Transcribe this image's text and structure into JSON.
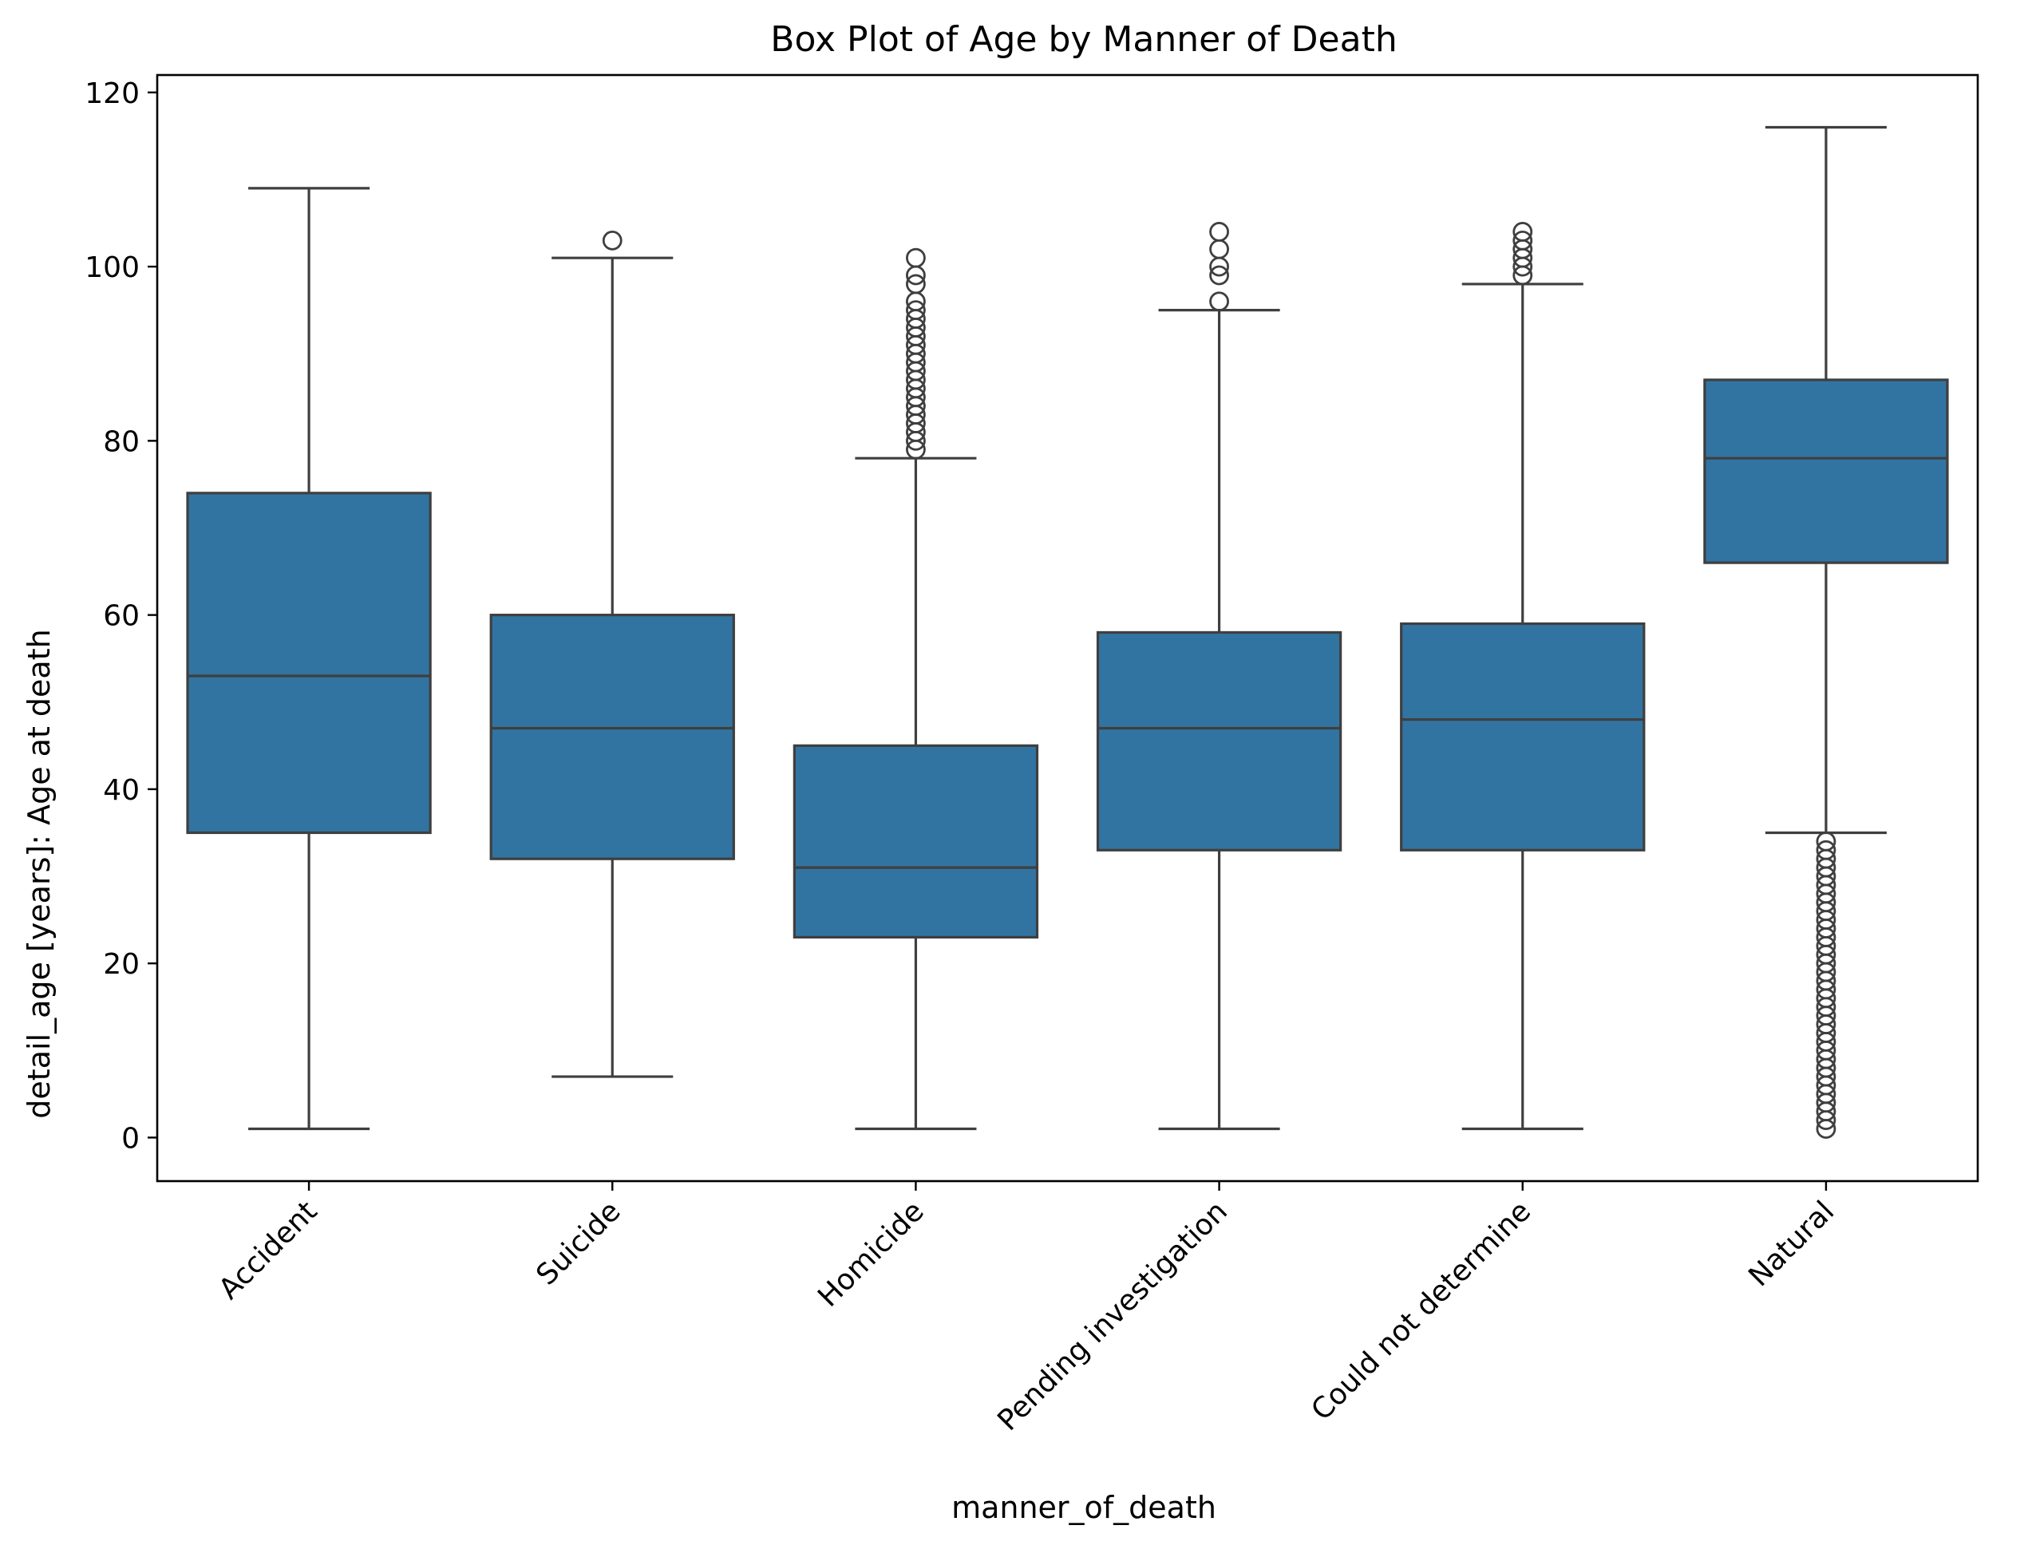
{
  "chart_data": {
    "type": "box",
    "title": "Box Plot of Age by Manner of Death",
    "xlabel": "manner_of_death",
    "ylabel": "detail_age [years]: Age at death",
    "ylim": [
      -5,
      122
    ],
    "yticks": [
      0,
      20,
      40,
      60,
      80,
      100,
      120
    ],
    "categories": [
      "Accident",
      "Suicide",
      "Homicide",
      "Pending investigation",
      "Could not determine",
      "Natural"
    ],
    "boxes": [
      {
        "category": "Accident",
        "whisker_low": 1,
        "q1": 35,
        "median": 53,
        "q3": 74,
        "whisker_high": 109,
        "outliers": []
      },
      {
        "category": "Suicide",
        "whisker_low": 7,
        "q1": 32,
        "median": 47,
        "q3": 60,
        "whisker_high": 101,
        "outliers": [
          103
        ]
      },
      {
        "category": "Homicide",
        "whisker_low": 1,
        "q1": 23,
        "median": 31,
        "q3": 45,
        "whisker_high": 78,
        "outliers": [
          79,
          80,
          81,
          82,
          83,
          84,
          85,
          86,
          87,
          88,
          89,
          90,
          91,
          92,
          93,
          94,
          95,
          96,
          98,
          99,
          101
        ]
      },
      {
        "category": "Pending investigation",
        "whisker_low": 1,
        "q1": 33,
        "median": 47,
        "q3": 58,
        "whisker_high": 95,
        "outliers": [
          96,
          99,
          100,
          102,
          104
        ]
      },
      {
        "category": "Could not determine",
        "whisker_low": 1,
        "q1": 33,
        "median": 48,
        "q3": 59,
        "whisker_high": 98,
        "outliers": [
          99,
          100,
          101,
          102,
          103,
          104
        ]
      },
      {
        "category": "Natural",
        "whisker_low": 35,
        "q1": 66,
        "median": 78,
        "q3": 87,
        "whisker_high": 116,
        "outliers": [
          1,
          2,
          3,
          4,
          5,
          6,
          7,
          8,
          9,
          10,
          11,
          12,
          13,
          14,
          15,
          16,
          17,
          18,
          19,
          20,
          21,
          22,
          23,
          24,
          25,
          26,
          27,
          28,
          29,
          30,
          31,
          32,
          33,
          34
        ]
      }
    ],
    "box_color": "#3274a1",
    "line_color": "#3f3f3f",
    "grid": false,
    "legend": "none"
  }
}
